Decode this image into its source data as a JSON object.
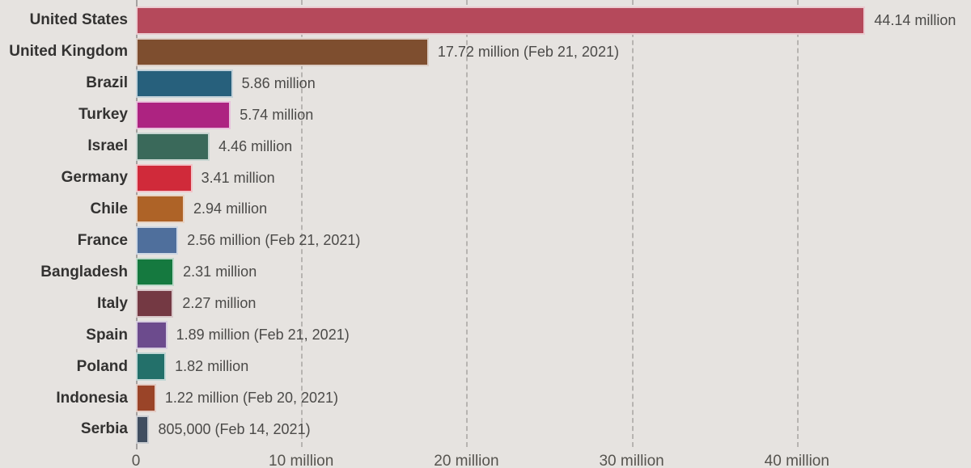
{
  "chart_data": {
    "type": "bar",
    "orientation": "horizontal",
    "title": "",
    "categories": [
      "United States",
      "United Kingdom",
      "Brazil",
      "Turkey",
      "Israel",
      "Germany",
      "Chile",
      "France",
      "Bangladesh",
      "Italy",
      "Spain",
      "Poland",
      "Indonesia",
      "Serbia"
    ],
    "values_millions": [
      44.14,
      17.72,
      5.86,
      5.74,
      4.46,
      3.41,
      2.94,
      2.56,
      2.31,
      2.27,
      1.89,
      1.82,
      1.22,
      0.805
    ],
    "value_labels": [
      "44.14 million",
      "17.72 million (Feb 21, 2021)",
      "5.86 million",
      "5.74 million",
      "4.46 million",
      "3.41 million",
      "2.94 million",
      "2.56 million (Feb 21, 2021)",
      "2.31 million",
      "2.27 million",
      "1.89 million (Feb 21, 2021)",
      "1.82 million",
      "1.22 million (Feb 20, 2021)",
      "805,000 (Feb 14, 2021)"
    ],
    "bar_colors": [
      "#b5495b",
      "#7e4e2f",
      "#27607c",
      "#ad2381",
      "#3a695a",
      "#d02a3a",
      "#ae6327",
      "#4f6f9c",
      "#15793f",
      "#743943",
      "#6c4b8d",
      "#23706a",
      "#9a4428",
      "#404e60"
    ],
    "x_axis": {
      "ticks": [
        0,
        10,
        20,
        30,
        40
      ],
      "tick_labels": [
        "0",
        "10 million",
        "20 million",
        "30 million",
        "40 million"
      ],
      "range": [
        0,
        50.5
      ],
      "gridlines": true
    },
    "legend": null
  },
  "colors": {
    "background": "#e6e3e0",
    "country_label": "#333231",
    "value_label": "#4b4a48",
    "gridline": "#b7b4b1",
    "axis_line": "#a5a2a0",
    "tick_label": "#56544f"
  }
}
